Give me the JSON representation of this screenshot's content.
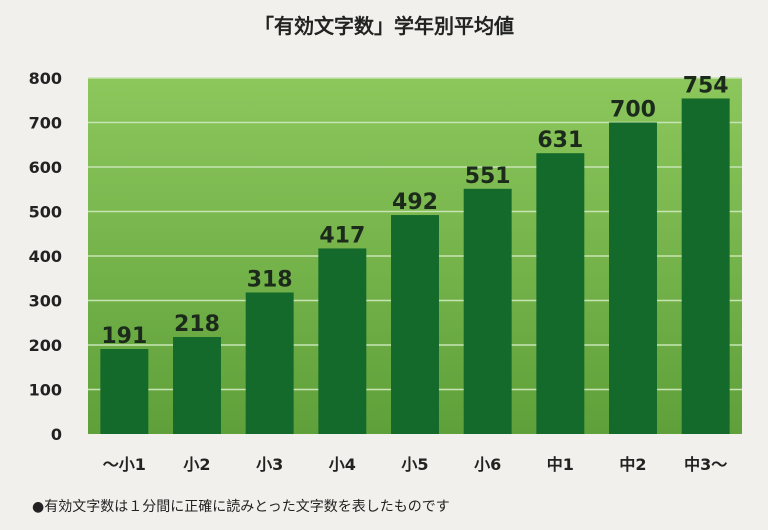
{
  "chart_data": {
    "type": "bar",
    "title": "「有効文字数」学年別平均値",
    "categories": [
      "～小1",
      "小2",
      "小3",
      "小4",
      "小5",
      "小6",
      "中1",
      "中2",
      "中3～"
    ],
    "values": [
      191,
      218,
      318,
      417,
      492,
      551,
      631,
      700,
      754
    ],
    "ylim": [
      0,
      800
    ],
    "yticks": [
      0,
      100,
      200,
      300,
      400,
      500,
      600,
      700,
      800
    ],
    "grid": true,
    "colors": {
      "plot_background": "#74b04a",
      "bar": "#146a2a",
      "gridline": "#c8e4b4",
      "data_label": "#1b2a1b"
    }
  },
  "footnote": "●有効文字数は１分間に正確に読みとった文字数を表したものです"
}
